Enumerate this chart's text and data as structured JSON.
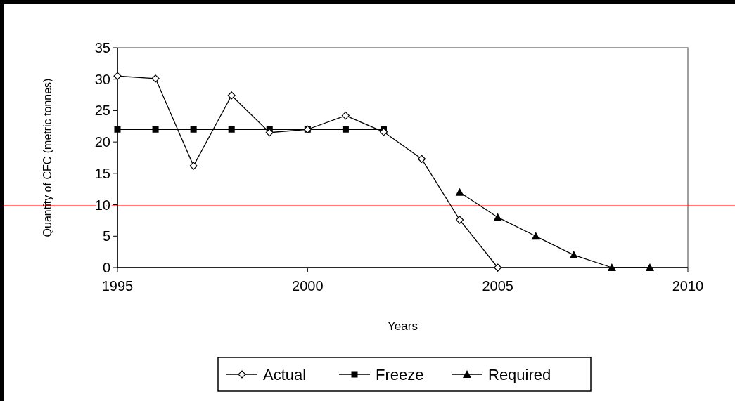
{
  "chart_data": {
    "type": "line",
    "xlabel": "Years",
    "ylabel": "Quantity of CFC (metric tonnes)",
    "xlim": [
      1995,
      2010
    ],
    "xticks": [
      1995,
      2000,
      2005,
      2010
    ],
    "ylim": [
      0,
      35
    ],
    "yticks": [
      0,
      5,
      10,
      15,
      20,
      25,
      30,
      35
    ],
    "grid": false,
    "legend": "bottom",
    "series": [
      {
        "name": "Actual",
        "color": "#000000",
        "marker": "diamond",
        "x": [
          1995,
          1996,
          1997,
          1998,
          1999,
          2000,
          2001,
          2002,
          2003,
          2004,
          2005
        ],
        "values": [
          30.5,
          30.1,
          16.2,
          27.4,
          21.5,
          22.0,
          24.2,
          21.6,
          17.3,
          7.6,
          0
        ]
      },
      {
        "name": "Freeze",
        "color": "#000000",
        "marker": "square",
        "x": [
          1995,
          1996,
          1997,
          1998,
          1999,
          2000,
          2001,
          2002
        ],
        "values": [
          22,
          22,
          22,
          22,
          22,
          22,
          22,
          22
        ]
      },
      {
        "name": "Required",
        "color": "#000000",
        "marker": "triangle",
        "x": [
          2004,
          2005,
          2006,
          2007,
          2008,
          2009
        ],
        "values": [
          12,
          8,
          5,
          2,
          0,
          0
        ]
      }
    ],
    "ref_lines": [
      {
        "axis": "y",
        "value": 9.8,
        "color": "#ff0000"
      }
    ]
  }
}
